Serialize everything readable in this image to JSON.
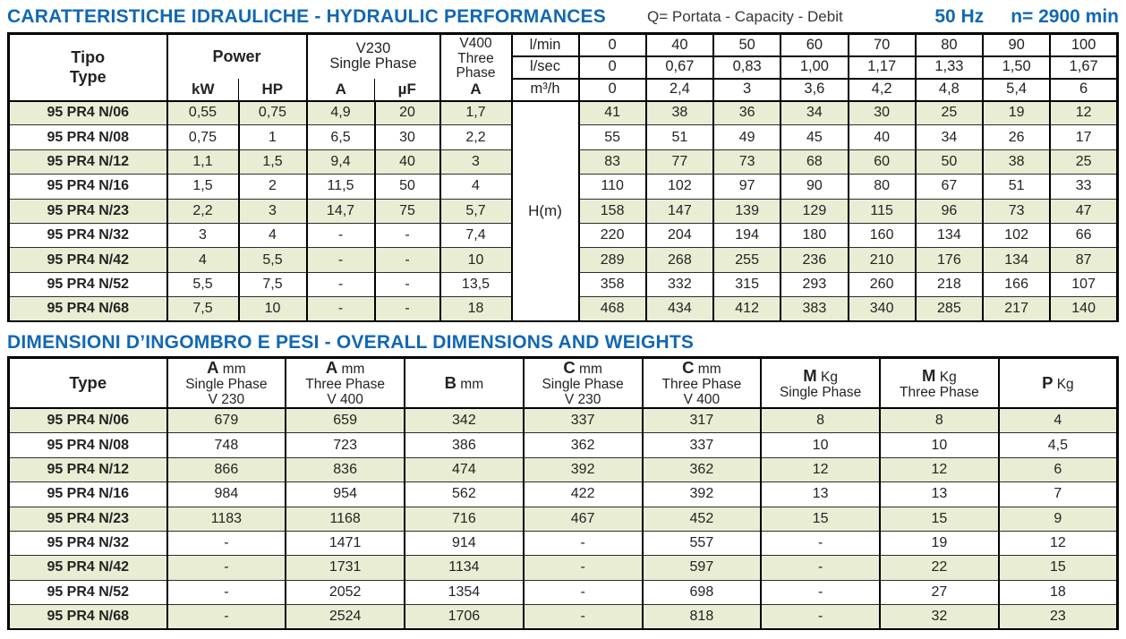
{
  "header": {
    "title": "CARATTERISTICHE IDRAULICHE - HYDRAULIC PERFORMANCES",
    "capacity_label": "Q= Portata - Capacity - Debit",
    "frequency": "50 Hz",
    "speed": "n= 2900 min",
    "accent_color": "#1268b3",
    "stripe_color": "#e9edd3"
  },
  "hydraulic_table": {
    "headers": {
      "tipo": "Tipo",
      "type_en": "Type",
      "power": "Power",
      "kw": "kW",
      "hp": "HP",
      "v230_l1": "V230",
      "v230_l2": "Single Phase",
      "a": "A",
      "uf": "µF",
      "v400_l1": "V400",
      "v400_l2": "Three",
      "v400_l3": "Phase",
      "v400_a": "A"
    },
    "head_label": "H(m)",
    "flow_rows": [
      {
        "unit": "l/min",
        "values": [
          "0",
          "40",
          "50",
          "60",
          "70",
          "80",
          "90",
          "100"
        ]
      },
      {
        "unit": "l/sec",
        "values": [
          "0",
          "0,67",
          "0,83",
          "1,00",
          "1,17",
          "1,33",
          "1,50",
          "1,67"
        ]
      },
      {
        "unit": "m³/h",
        "values": [
          "0",
          "2,4",
          "3",
          "3,6",
          "4,2",
          "4,8",
          "5,4",
          "6"
        ]
      }
    ],
    "rows": [
      {
        "type": "95 PR4 N/06",
        "kw": "0,55",
        "hp": "0,75",
        "a": "4,9",
        "uf": "20",
        "a400": "1,7",
        "heads": [
          "41",
          "38",
          "36",
          "34",
          "30",
          "25",
          "19",
          "12"
        ]
      },
      {
        "type": "95 PR4 N/08",
        "kw": "0,75",
        "hp": "1",
        "a": "6,5",
        "uf": "30",
        "a400": "2,2",
        "heads": [
          "55",
          "51",
          "49",
          "45",
          "40",
          "34",
          "26",
          "17"
        ]
      },
      {
        "type": "95 PR4 N/12",
        "kw": "1,1",
        "hp": "1,5",
        "a": "9,4",
        "uf": "40",
        "a400": "3",
        "heads": [
          "83",
          "77",
          "73",
          "68",
          "60",
          "50",
          "38",
          "25"
        ]
      },
      {
        "type": "95 PR4 N/16",
        "kw": "1,5",
        "hp": "2",
        "a": "11,5",
        "uf": "50",
        "a400": "4",
        "heads": [
          "110",
          "102",
          "97",
          "90",
          "80",
          "67",
          "51",
          "33"
        ]
      },
      {
        "type": "95 PR4 N/23",
        "kw": "2,2",
        "hp": "3",
        "a": "14,7",
        "uf": "75",
        "a400": "5,7",
        "heads": [
          "158",
          "147",
          "139",
          "129",
          "115",
          "96",
          "73",
          "47"
        ]
      },
      {
        "type": "95 PR4 N/32",
        "kw": "3",
        "hp": "4",
        "a": "-",
        "uf": "-",
        "a400": "7,4",
        "heads": [
          "220",
          "204",
          "194",
          "180",
          "160",
          "134",
          "102",
          "66"
        ]
      },
      {
        "type": "95 PR4 N/42",
        "kw": "4",
        "hp": "5,5",
        "a": "-",
        "uf": "-",
        "a400": "10",
        "heads": [
          "289",
          "268",
          "255",
          "236",
          "210",
          "176",
          "134",
          "87"
        ]
      },
      {
        "type": "95 PR4 N/52",
        "kw": "5,5",
        "hp": "7,5",
        "a": "-",
        "uf": "-",
        "a400": "13,5",
        "heads": [
          "358",
          "332",
          "315",
          "293",
          "260",
          "218",
          "166",
          "107"
        ]
      },
      {
        "type": "95 PR4 N/68",
        "kw": "7,5",
        "hp": "10",
        "a": "-",
        "uf": "-",
        "a400": "18",
        "heads": [
          "468",
          "434",
          "412",
          "383",
          "340",
          "285",
          "217",
          "140"
        ]
      }
    ]
  },
  "dimensions_table": {
    "title": "DIMENSIONI D’INGOMBRO E PESI - OVERALL DIMENSIONS AND WEIGHTS",
    "columns": [
      {
        "bold": "Type",
        "unit": "",
        "lines": []
      },
      {
        "bold": "A",
        "unit": "mm",
        "lines": [
          "Single Phase",
          "V 230"
        ]
      },
      {
        "bold": "A",
        "unit": "mm",
        "lines": [
          "Three Phase",
          "V 400"
        ]
      },
      {
        "bold": "B",
        "unit": "mm",
        "lines": []
      },
      {
        "bold": "C",
        "unit": "mm",
        "lines": [
          "Single Phase",
          "V 230"
        ]
      },
      {
        "bold": "C",
        "unit": "mm",
        "lines": [
          "Three Phase",
          "V 400"
        ]
      },
      {
        "bold": "M",
        "unit": "Kg",
        "lines": [
          "Single Phase"
        ]
      },
      {
        "bold": "M",
        "unit": "Kg",
        "lines": [
          "Three Phase"
        ]
      },
      {
        "bold": "P",
        "unit": "Kg",
        "lines": []
      }
    ],
    "rows": [
      {
        "type": "95 PR4 N/06",
        "values": [
          "679",
          "659",
          "342",
          "337",
          "317",
          "8",
          "8",
          "4"
        ]
      },
      {
        "type": "95 PR4 N/08",
        "values": [
          "748",
          "723",
          "386",
          "362",
          "337",
          "10",
          "10",
          "4,5"
        ]
      },
      {
        "type": "95 PR4 N/12",
        "values": [
          "866",
          "836",
          "474",
          "392",
          "362",
          "12",
          "12",
          "6"
        ]
      },
      {
        "type": "95 PR4 N/16",
        "values": [
          "984",
          "954",
          "562",
          "422",
          "392",
          "13",
          "13",
          "7"
        ]
      },
      {
        "type": "95 PR4 N/23",
        "values": [
          "1183",
          "1168",
          "716",
          "467",
          "452",
          "15",
          "15",
          "9"
        ]
      },
      {
        "type": "95 PR4 N/32",
        "values": [
          "-",
          "1471",
          "914",
          "-",
          "557",
          "-",
          "19",
          "12"
        ]
      },
      {
        "type": "95 PR4 N/42",
        "values": [
          "-",
          "1731",
          "1134",
          "-",
          "597",
          "-",
          "22",
          "15"
        ]
      },
      {
        "type": "95 PR4 N/52",
        "values": [
          "-",
          "2052",
          "1354",
          "-",
          "698",
          "-",
          "27",
          "18"
        ]
      },
      {
        "type": "95 PR4 N/68",
        "values": [
          "-",
          "2524",
          "1706",
          "-",
          "818",
          "-",
          "32",
          "23"
        ]
      }
    ]
  }
}
